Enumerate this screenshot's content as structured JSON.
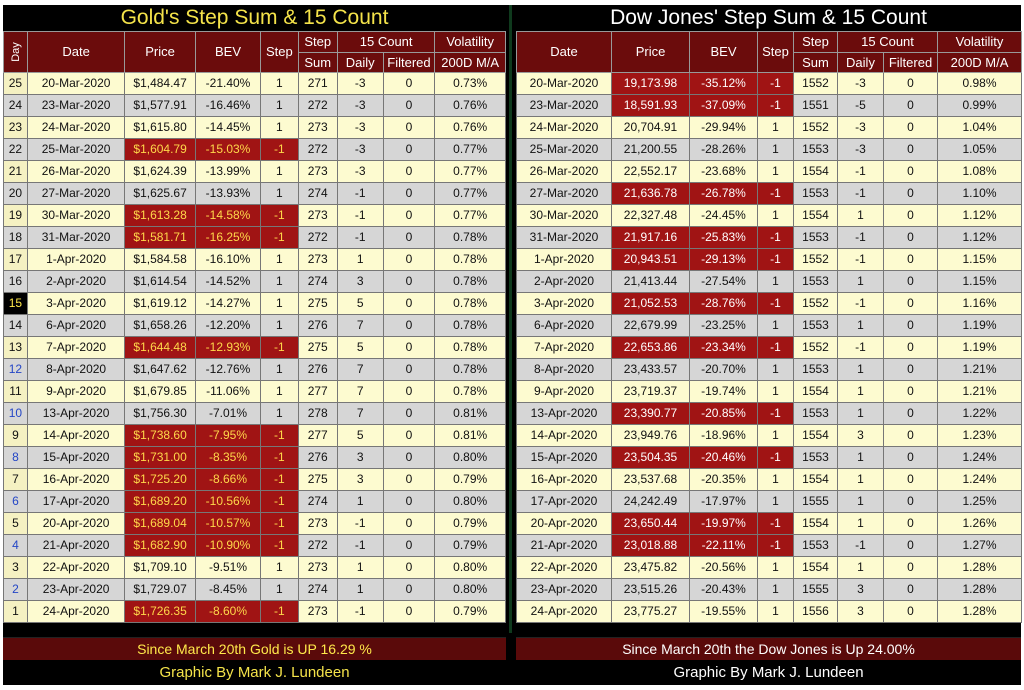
{
  "gold": {
    "title": "Gold's Step Sum & 15 Count",
    "headers": {
      "day": "Day",
      "date": "Date",
      "price": "Price",
      "bev": "BEV",
      "step": "Step",
      "step_sum_1": "Step",
      "step_sum_2": "Sum",
      "count_group": "15 Count",
      "daily": "Daily",
      "filtered": "Filtered",
      "vol_1": "Volatility",
      "vol_2": "200D M/A"
    },
    "rows": [
      {
        "day": "25",
        "date": "20-Mar-2020",
        "price": "$1,484.47",
        "bev": "-21.40%",
        "step": "1",
        "sum": "271",
        "daily": "-3",
        "filtered": "0",
        "vol": "0.73%",
        "neg": false
      },
      {
        "day": "24",
        "date": "23-Mar-2020",
        "price": "$1,577.91",
        "bev": "-16.46%",
        "step": "1",
        "sum": "272",
        "daily": "-3",
        "filtered": "0",
        "vol": "0.76%",
        "neg": false
      },
      {
        "day": "23",
        "date": "24-Mar-2020",
        "price": "$1,615.80",
        "bev": "-14.45%",
        "step": "1",
        "sum": "273",
        "daily": "-3",
        "filtered": "0",
        "vol": "0.76%",
        "neg": false
      },
      {
        "day": "22",
        "date": "25-Mar-2020",
        "price": "$1,604.79",
        "bev": "-15.03%",
        "step": "-1",
        "sum": "272",
        "daily": "-3",
        "filtered": "0",
        "vol": "0.77%",
        "neg": true
      },
      {
        "day": "21",
        "date": "26-Mar-2020",
        "price": "$1,624.39",
        "bev": "-13.99%",
        "step": "1",
        "sum": "273",
        "daily": "-3",
        "filtered": "0",
        "vol": "0.77%",
        "neg": false
      },
      {
        "day": "20",
        "date": "27-Mar-2020",
        "price": "$1,625.67",
        "bev": "-13.93%",
        "step": "1",
        "sum": "274",
        "daily": "-1",
        "filtered": "0",
        "vol": "0.77%",
        "neg": false
      },
      {
        "day": "19",
        "date": "30-Mar-2020",
        "price": "$1,613.28",
        "bev": "-14.58%",
        "step": "-1",
        "sum": "273",
        "daily": "-1",
        "filtered": "0",
        "vol": "0.77%",
        "neg": true
      },
      {
        "day": "18",
        "date": "31-Mar-2020",
        "price": "$1,581.71",
        "bev": "-16.25%",
        "step": "-1",
        "sum": "272",
        "daily": "-1",
        "filtered": "0",
        "vol": "0.78%",
        "neg": true
      },
      {
        "day": "17",
        "date": "1-Apr-2020",
        "price": "$1,584.58",
        "bev": "-16.10%",
        "step": "1",
        "sum": "273",
        "daily": "1",
        "filtered": "0",
        "vol": "0.78%",
        "neg": false
      },
      {
        "day": "16",
        "date": "2-Apr-2020",
        "price": "$1,614.54",
        "bev": "-14.52%",
        "step": "1",
        "sum": "274",
        "daily": "3",
        "filtered": "0",
        "vol": "0.78%",
        "neg": false
      },
      {
        "day": "15",
        "date": "3-Apr-2020",
        "price": "$1,619.12",
        "bev": "-14.27%",
        "step": "1",
        "sum": "275",
        "daily": "5",
        "filtered": "0",
        "vol": "0.78%",
        "neg": false
      },
      {
        "day": "14",
        "date": "6-Apr-2020",
        "price": "$1,658.26",
        "bev": "-12.20%",
        "step": "1",
        "sum": "276",
        "daily": "7",
        "filtered": "0",
        "vol": "0.78%",
        "neg": false
      },
      {
        "day": "13",
        "date": "7-Apr-2020",
        "price": "$1,644.48",
        "bev": "-12.93%",
        "step": "-1",
        "sum": "275",
        "daily": "5",
        "filtered": "0",
        "vol": "0.78%",
        "neg": true
      },
      {
        "day": "12",
        "date": "8-Apr-2020",
        "price": "$1,647.62",
        "bev": "-12.76%",
        "step": "1",
        "sum": "276",
        "daily": "7",
        "filtered": "0",
        "vol": "0.78%",
        "neg": false
      },
      {
        "day": "11",
        "date": "9-Apr-2020",
        "price": "$1,679.85",
        "bev": "-11.06%",
        "step": "1",
        "sum": "277",
        "daily": "7",
        "filtered": "0",
        "vol": "0.78%",
        "neg": false
      },
      {
        "day": "10",
        "date": "13-Apr-2020",
        "price": "$1,756.30",
        "bev": "-7.01%",
        "step": "1",
        "sum": "278",
        "daily": "7",
        "filtered": "0",
        "vol": "0.81%",
        "neg": false
      },
      {
        "day": "9",
        "date": "14-Apr-2020",
        "price": "$1,738.60",
        "bev": "-7.95%",
        "step": "-1",
        "sum": "277",
        "daily": "5",
        "filtered": "0",
        "vol": "0.81%",
        "neg": true
      },
      {
        "day": "8",
        "date": "15-Apr-2020",
        "price": "$1,731.00",
        "bev": "-8.35%",
        "step": "-1",
        "sum": "276",
        "daily": "3",
        "filtered": "0",
        "vol": "0.80%",
        "neg": true
      },
      {
        "day": "7",
        "date": "16-Apr-2020",
        "price": "$1,725.20",
        "bev": "-8.66%",
        "step": "-1",
        "sum": "275",
        "daily": "3",
        "filtered": "0",
        "vol": "0.79%",
        "neg": true
      },
      {
        "day": "6",
        "date": "17-Apr-2020",
        "price": "$1,689.20",
        "bev": "-10.56%",
        "step": "-1",
        "sum": "274",
        "daily": "1",
        "filtered": "0",
        "vol": "0.80%",
        "neg": true
      },
      {
        "day": "5",
        "date": "20-Apr-2020",
        "price": "$1,689.04",
        "bev": "-10.57%",
        "step": "-1",
        "sum": "273",
        "daily": "-1",
        "filtered": "0",
        "vol": "0.79%",
        "neg": true
      },
      {
        "day": "4",
        "date": "21-Apr-2020",
        "price": "$1,682.90",
        "bev": "-10.90%",
        "step": "-1",
        "sum": "272",
        "daily": "-1",
        "filtered": "0",
        "vol": "0.79%",
        "neg": true
      },
      {
        "day": "3",
        "date": "22-Apr-2020",
        "price": "$1,709.10",
        "bev": "-9.51%",
        "step": "1",
        "sum": "273",
        "daily": "1",
        "filtered": "0",
        "vol": "0.80%",
        "neg": false
      },
      {
        "day": "2",
        "date": "23-Apr-2020",
        "price": "$1,729.07",
        "bev": "-8.45%",
        "step": "1",
        "sum": "274",
        "daily": "1",
        "filtered": "0",
        "vol": "0.80%",
        "neg": false
      },
      {
        "day": "1",
        "date": "24-Apr-2020",
        "price": "$1,726.35",
        "bev": "-8.60%",
        "step": "-1",
        "sum": "273",
        "daily": "-1",
        "filtered": "0",
        "vol": "0.79%",
        "neg": true
      }
    ],
    "footer": "Since March 20th Gold is UP 16.29 %",
    "credit": "Graphic By Mark J. Lundeen"
  },
  "dow": {
    "title": "Dow Jones' Step Sum & 15 Count",
    "headers": {
      "date": "Date",
      "price": "Price",
      "bev": "BEV",
      "step": "Step",
      "step_sum_1": "Step",
      "step_sum_2": "Sum",
      "count_group": "15 Count",
      "daily": "Daily",
      "filtered": "Filtered",
      "vol_1": "Volatility",
      "vol_2": "200D M/A"
    },
    "rows": [
      {
        "date": "20-Mar-2020",
        "price": "19,173.98",
        "bev": "-35.12%",
        "step": "-1",
        "sum": "1552",
        "daily": "-3",
        "filtered": "0",
        "vol": "0.98%",
        "neg": true
      },
      {
        "date": "23-Mar-2020",
        "price": "18,591.93",
        "bev": "-37.09%",
        "step": "-1",
        "sum": "1551",
        "daily": "-5",
        "filtered": "0",
        "vol": "0.99%",
        "neg": true
      },
      {
        "date": "24-Mar-2020",
        "price": "20,704.91",
        "bev": "-29.94%",
        "step": "1",
        "sum": "1552",
        "daily": "-3",
        "filtered": "0",
        "vol": "1.04%",
        "neg": false
      },
      {
        "date": "25-Mar-2020",
        "price": "21,200.55",
        "bev": "-28.26%",
        "step": "1",
        "sum": "1553",
        "daily": "-3",
        "filtered": "0",
        "vol": "1.05%",
        "neg": false
      },
      {
        "date": "26-Mar-2020",
        "price": "22,552.17",
        "bev": "-23.68%",
        "step": "1",
        "sum": "1554",
        "daily": "-1",
        "filtered": "0",
        "vol": "1.08%",
        "neg": false
      },
      {
        "date": "27-Mar-2020",
        "price": "21,636.78",
        "bev": "-26.78%",
        "step": "-1",
        "sum": "1553",
        "daily": "-1",
        "filtered": "0",
        "vol": "1.10%",
        "neg": true
      },
      {
        "date": "30-Mar-2020",
        "price": "22,327.48",
        "bev": "-24.45%",
        "step": "1",
        "sum": "1554",
        "daily": "1",
        "filtered": "0",
        "vol": "1.12%",
        "neg": false
      },
      {
        "date": "31-Mar-2020",
        "price": "21,917.16",
        "bev": "-25.83%",
        "step": "-1",
        "sum": "1553",
        "daily": "-1",
        "filtered": "0",
        "vol": "1.12%",
        "neg": true
      },
      {
        "date": "1-Apr-2020",
        "price": "20,943.51",
        "bev": "-29.13%",
        "step": "-1",
        "sum": "1552",
        "daily": "-1",
        "filtered": "0",
        "vol": "1.15%",
        "neg": true
      },
      {
        "date": "2-Apr-2020",
        "price": "21,413.44",
        "bev": "-27.54%",
        "step": "1",
        "sum": "1553",
        "daily": "1",
        "filtered": "0",
        "vol": "1.15%",
        "neg": false
      },
      {
        "date": "3-Apr-2020",
        "price": "21,052.53",
        "bev": "-28.76%",
        "step": "-1",
        "sum": "1552",
        "daily": "-1",
        "filtered": "0",
        "vol": "1.16%",
        "neg": true
      },
      {
        "date": "6-Apr-2020",
        "price": "22,679.99",
        "bev": "-23.25%",
        "step": "1",
        "sum": "1553",
        "daily": "1",
        "filtered": "0",
        "vol": "1.19%",
        "neg": false
      },
      {
        "date": "7-Apr-2020",
        "price": "22,653.86",
        "bev": "-23.34%",
        "step": "-1",
        "sum": "1552",
        "daily": "-1",
        "filtered": "0",
        "vol": "1.19%",
        "neg": true
      },
      {
        "date": "8-Apr-2020",
        "price": "23,433.57",
        "bev": "-20.70%",
        "step": "1",
        "sum": "1553",
        "daily": "1",
        "filtered": "0",
        "vol": "1.21%",
        "neg": false
      },
      {
        "date": "9-Apr-2020",
        "price": "23,719.37",
        "bev": "-19.74%",
        "step": "1",
        "sum": "1554",
        "daily": "1",
        "filtered": "0",
        "vol": "1.21%",
        "neg": false
      },
      {
        "date": "13-Apr-2020",
        "price": "23,390.77",
        "bev": "-20.85%",
        "step": "-1",
        "sum": "1553",
        "daily": "1",
        "filtered": "0",
        "vol": "1.22%",
        "neg": true
      },
      {
        "date": "14-Apr-2020",
        "price": "23,949.76",
        "bev": "-18.96%",
        "step": "1",
        "sum": "1554",
        "daily": "3",
        "filtered": "0",
        "vol": "1.23%",
        "neg": false
      },
      {
        "date": "15-Apr-2020",
        "price": "23,504.35",
        "bev": "-20.46%",
        "step": "-1",
        "sum": "1553",
        "daily": "1",
        "filtered": "0",
        "vol": "1.24%",
        "neg": true
      },
      {
        "date": "16-Apr-2020",
        "price": "23,537.68",
        "bev": "-20.35%",
        "step": "1",
        "sum": "1554",
        "daily": "1",
        "filtered": "0",
        "vol": "1.24%",
        "neg": false
      },
      {
        "date": "17-Apr-2020",
        "price": "24,242.49",
        "bev": "-17.97%",
        "step": "1",
        "sum": "1555",
        "daily": "1",
        "filtered": "0",
        "vol": "1.25%",
        "neg": false
      },
      {
        "date": "20-Apr-2020",
        "price": "23,650.44",
        "bev": "-19.97%",
        "step": "-1",
        "sum": "1554",
        "daily": "1",
        "filtered": "0",
        "vol": "1.26%",
        "neg": true
      },
      {
        "date": "21-Apr-2020",
        "price": "23,018.88",
        "bev": "-22.11%",
        "step": "-1",
        "sum": "1553",
        "daily": "-1",
        "filtered": "0",
        "vol": "1.27%",
        "neg": true
      },
      {
        "date": "22-Apr-2020",
        "price": "23,475.82",
        "bev": "-20.56%",
        "step": "1",
        "sum": "1554",
        "daily": "1",
        "filtered": "0",
        "vol": "1.28%",
        "neg": false
      },
      {
        "date": "23-Apr-2020",
        "price": "23,515.26",
        "bev": "-20.43%",
        "step": "1",
        "sum": "1555",
        "daily": "3",
        "filtered": "0",
        "vol": "1.28%",
        "neg": false
      },
      {
        "date": "24-Apr-2020",
        "price": "23,775.27",
        "bev": "-19.55%",
        "step": "1",
        "sum": "1556",
        "daily": "3",
        "filtered": "0",
        "vol": "1.28%",
        "neg": false
      }
    ],
    "footer": "Since March 20th  the Dow Jones is Up 24.00%",
    "credit": "Graphic By Mark J. Lundeen"
  },
  "colors": {
    "header_bg": "#6b0c0c",
    "negative_bg": "#a01414",
    "row_light": "#fdfbd0",
    "row_gray": "#d6d6d6",
    "gold_title": "#f4e34a"
  }
}
